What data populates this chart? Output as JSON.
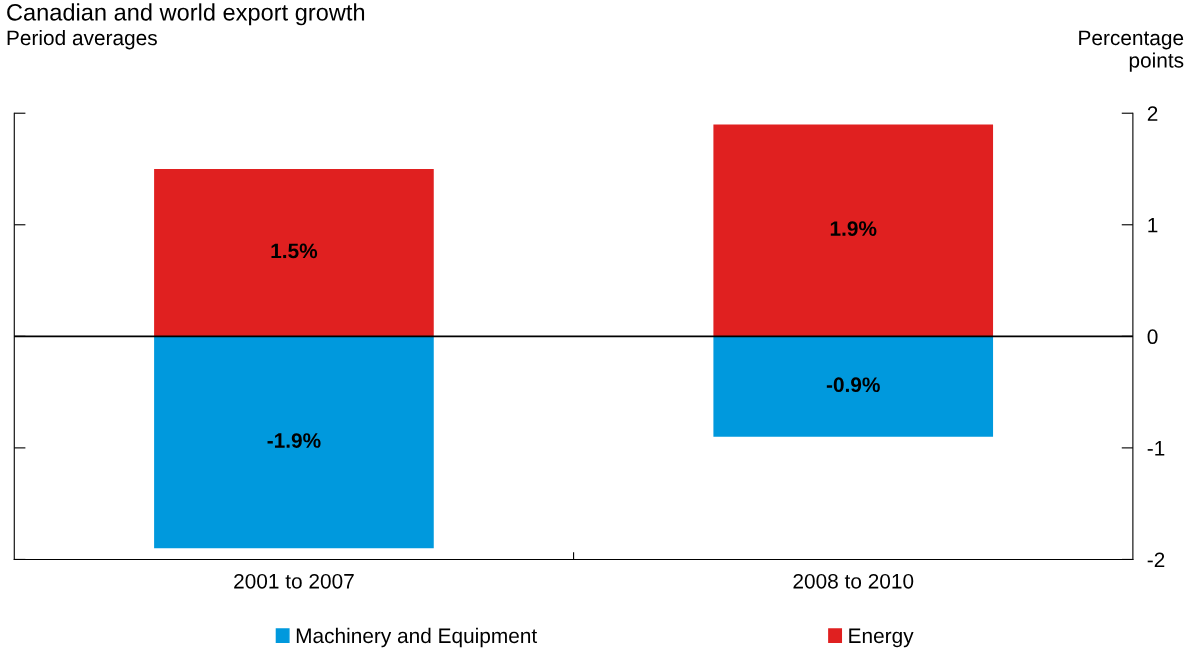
{
  "chart_data": {
    "type": "bar",
    "title": "Canadian and world export growth",
    "subtitle": "Period averages",
    "ylabel": "Percentage points",
    "categories": [
      "2001 to 2007",
      "2008 to 2010"
    ],
    "series": [
      {
        "name": "Machinery and Equipment",
        "color": "#0099dd",
        "values": [
          -1.9,
          -0.9
        ],
        "value_labels": [
          "-1.9%",
          "-0.9%"
        ]
      },
      {
        "name": "Energy",
        "color": "#e02020",
        "values": [
          1.5,
          1.9
        ],
        "value_labels": [
          "1.5%",
          "1.9%"
        ]
      }
    ],
    "stacked": true,
    "ylim": [
      -2,
      2
    ],
    "yticks": [
      -2,
      -1,
      0,
      1,
      2
    ],
    "grid": false,
    "legend": "bottom",
    "ref_lines": [
      {
        "axis": "y",
        "value": 0,
        "color": "#000000"
      }
    ]
  }
}
